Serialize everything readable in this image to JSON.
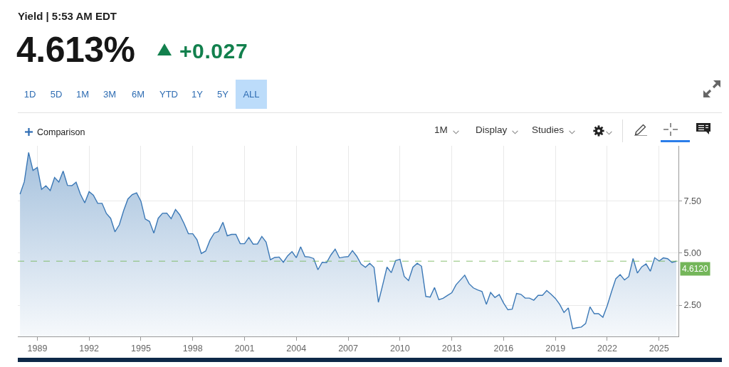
{
  "chart_data": {
    "type": "area",
    "title": "Yield | 5:53 AM EDT",
    "subtitle": "4.613%",
    "annotations": [
      "+0.027",
      "1D",
      "5D",
      "1M",
      "3M",
      "6M",
      "YTD",
      "1Y",
      "5Y",
      "ALL",
      "Comparison",
      "1M",
      "Display",
      "Studies"
    ],
    "x": [
      "1988-01",
      "1988-04",
      "1988-07",
      "1988-10",
      "1989-01",
      "1989-04",
      "1989-07",
      "1989-10",
      "1990-01",
      "1990-04",
      "1990-07",
      "1990-10",
      "1991-01",
      "1991-04",
      "1991-07",
      "1991-10",
      "1992-01",
      "1992-04",
      "1992-07",
      "1992-10",
      "1993-01",
      "1993-04",
      "1993-07",
      "1993-10",
      "1994-01",
      "1994-04",
      "1994-07",
      "1994-10",
      "1995-01",
      "1995-04",
      "1995-07",
      "1995-10",
      "1996-01",
      "1996-04",
      "1996-07",
      "1996-10",
      "1997-01",
      "1997-04",
      "1997-07",
      "1997-10",
      "1998-01",
      "1998-04",
      "1998-07",
      "1998-10",
      "1999-01",
      "1999-04",
      "1999-07",
      "1999-10",
      "2000-01",
      "2000-04",
      "2000-07",
      "2000-10",
      "2001-01",
      "2001-04",
      "2001-07",
      "2001-10",
      "2002-01",
      "2002-04",
      "2002-07",
      "2002-10",
      "2003-01",
      "2003-04",
      "2003-07",
      "2003-10",
      "2004-01",
      "2004-04",
      "2004-07",
      "2004-10",
      "2005-01",
      "2005-04",
      "2005-07",
      "2005-10",
      "2006-01",
      "2006-04",
      "2006-07",
      "2006-10",
      "2007-01",
      "2007-04",
      "2007-07",
      "2007-10",
      "2008-01",
      "2008-04",
      "2008-07",
      "2008-10",
      "2009-01",
      "2009-04",
      "2009-07",
      "2009-10",
      "2010-01",
      "2010-04",
      "2010-07",
      "2010-10",
      "2011-01",
      "2011-04",
      "2011-07",
      "2011-10",
      "2012-01",
      "2012-04",
      "2012-07",
      "2012-10",
      "2013-01",
      "2013-04",
      "2013-07",
      "2013-10",
      "2014-01",
      "2014-04",
      "2014-07",
      "2014-10",
      "2015-01",
      "2015-04",
      "2015-07",
      "2015-10",
      "2016-01",
      "2016-04",
      "2016-07",
      "2016-10",
      "2017-01",
      "2017-04",
      "2017-07",
      "2017-10",
      "2018-01",
      "2018-04",
      "2018-07",
      "2018-10",
      "2019-01",
      "2019-04",
      "2019-07",
      "2019-10",
      "2020-01",
      "2020-04",
      "2020-07",
      "2020-10",
      "2021-01",
      "2021-04",
      "2021-07",
      "2021-10",
      "2022-01",
      "2022-04",
      "2022-07",
      "2022-10",
      "2023-01",
      "2023-04",
      "2023-07",
      "2023-10",
      "2024-01",
      "2024-04",
      "2024-07",
      "2024-10",
      "2025-01",
      "2025-04",
      "2025-07",
      "2025-10",
      "2026-01"
    ],
    "series": [
      {
        "color": "#3b78b6",
        "values": [
          7.83,
          8.43,
          9.83,
          8.97,
          9.11,
          8.06,
          8.23,
          8.0,
          8.63,
          8.41,
          8.94,
          8.25,
          8.24,
          8.4,
          7.83,
          7.41,
          7.95,
          7.78,
          7.39,
          7.39,
          6.9,
          6.67,
          6.02,
          6.36,
          7.04,
          7.6,
          7.81,
          7.89,
          7.49,
          6.64,
          6.52,
          5.96,
          6.67,
          6.91,
          6.92,
          6.65,
          7.09,
          6.84,
          6.42,
          5.93,
          5.93,
          5.64,
          4.98,
          5.1,
          5.62,
          5.96,
          6.04,
          6.48,
          5.83,
          5.9,
          5.9,
          5.45,
          5.45,
          5.75,
          5.43,
          5.44,
          5.8,
          5.53,
          4.68,
          4.79,
          4.81,
          4.56,
          4.87,
          5.07,
          4.78,
          5.3,
          4.83,
          4.81,
          4.74,
          4.2,
          4.56,
          4.54,
          4.91,
          5.19,
          4.77,
          4.81,
          4.83,
          5.12,
          4.85,
          4.47,
          4.32,
          4.51,
          4.31,
          2.64,
          3.48,
          4.33,
          4.06,
          4.64,
          4.7,
          3.88,
          3.68,
          4.32,
          4.51,
          4.37,
          2.92,
          2.89,
          3.35,
          2.76,
          2.83,
          2.97,
          3.1,
          3.48,
          3.71,
          3.94,
          3.53,
          3.33,
          3.23,
          3.16,
          2.54,
          3.11,
          2.87,
          3.01,
          2.6,
          2.28,
          2.31,
          3.06,
          3.02,
          2.84,
          2.84,
          2.74,
          2.97,
          2.97,
          3.2,
          3.02,
          2.82,
          2.54,
          2.15,
          2.37,
          1.37,
          1.42,
          1.45,
          1.62,
          2.42,
          2.09,
          2.09,
          1.92,
          2.48,
          3.14,
          3.77,
          3.97,
          3.71,
          3.87,
          4.74,
          4.04,
          4.34,
          4.48,
          4.13,
          4.78,
          4.62,
          4.77,
          4.73,
          4.55,
          4.61
        ]
      }
    ],
    "xlim": [
      "1987-11-15",
      "2026-02-15"
    ],
    "xticks": [
      "1989",
      "1992",
      "1995",
      "1998",
      "2001",
      "2004",
      "2007",
      "2010",
      "2013",
      "2016",
      "2019",
      "2022",
      "2025"
    ],
    "ylim": [
      1.0,
      10.15
    ],
    "yticks": [
      {
        "value": 2.5,
        "label": "2.50"
      },
      {
        "value": 5,
        "label": "5.00"
      },
      {
        "value": 7.5,
        "label": "7.50"
      }
    ],
    "grid": true,
    "ref_lines": [
      {
        "axis": "y",
        "value": 4.612,
        "label": "4.6120",
        "color": "#74b65a",
        "line_style": "dashed"
      }
    ]
  }
}
